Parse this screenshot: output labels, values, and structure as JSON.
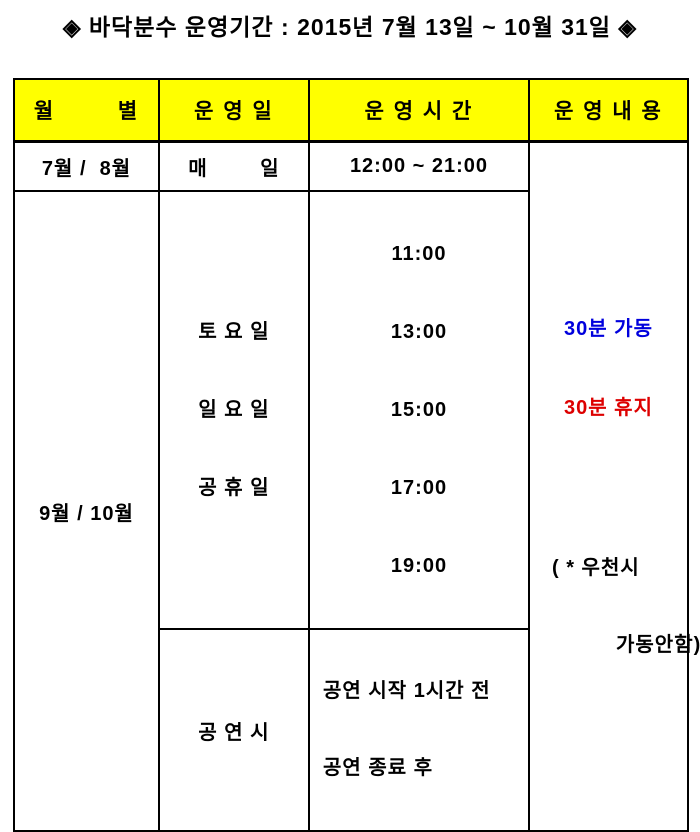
{
  "title": "◈ 바닥분수 운영기간 : 2015년 7월 13일 ~ 10월 31일 ◈",
  "header": {
    "month": "월        별",
    "days": "운 영 일",
    "hours": "운 영 시 간",
    "content": "운 영 내 용"
  },
  "rows": {
    "jul_aug": {
      "month": "7월 /  8월",
      "days": "매        일",
      "hours": "12:00 ~ 21:00"
    },
    "sep_oct": {
      "month": "9월 / 10월",
      "weekend": {
        "days": [
          "토 요 일",
          "일 요 일",
          "공 휴 일"
        ],
        "hours": [
          "11:00",
          "13:00",
          "15:00",
          "17:00",
          "19:00"
        ]
      },
      "performance": {
        "days": "공 연 시",
        "hours": [
          "공연 시작 1시간 전",
          "공연 종료 후"
        ]
      }
    }
  },
  "content": {
    "run": "30분 가동",
    "rest": "30분 휴지",
    "rain_note": [
      "( * 우천시",
      "가동안함)"
    ]
  },
  "colors": {
    "header_bg": "#ffff00",
    "run_blue": "#0000dd",
    "rest_red": "#dd0000",
    "border": "#000000"
  }
}
